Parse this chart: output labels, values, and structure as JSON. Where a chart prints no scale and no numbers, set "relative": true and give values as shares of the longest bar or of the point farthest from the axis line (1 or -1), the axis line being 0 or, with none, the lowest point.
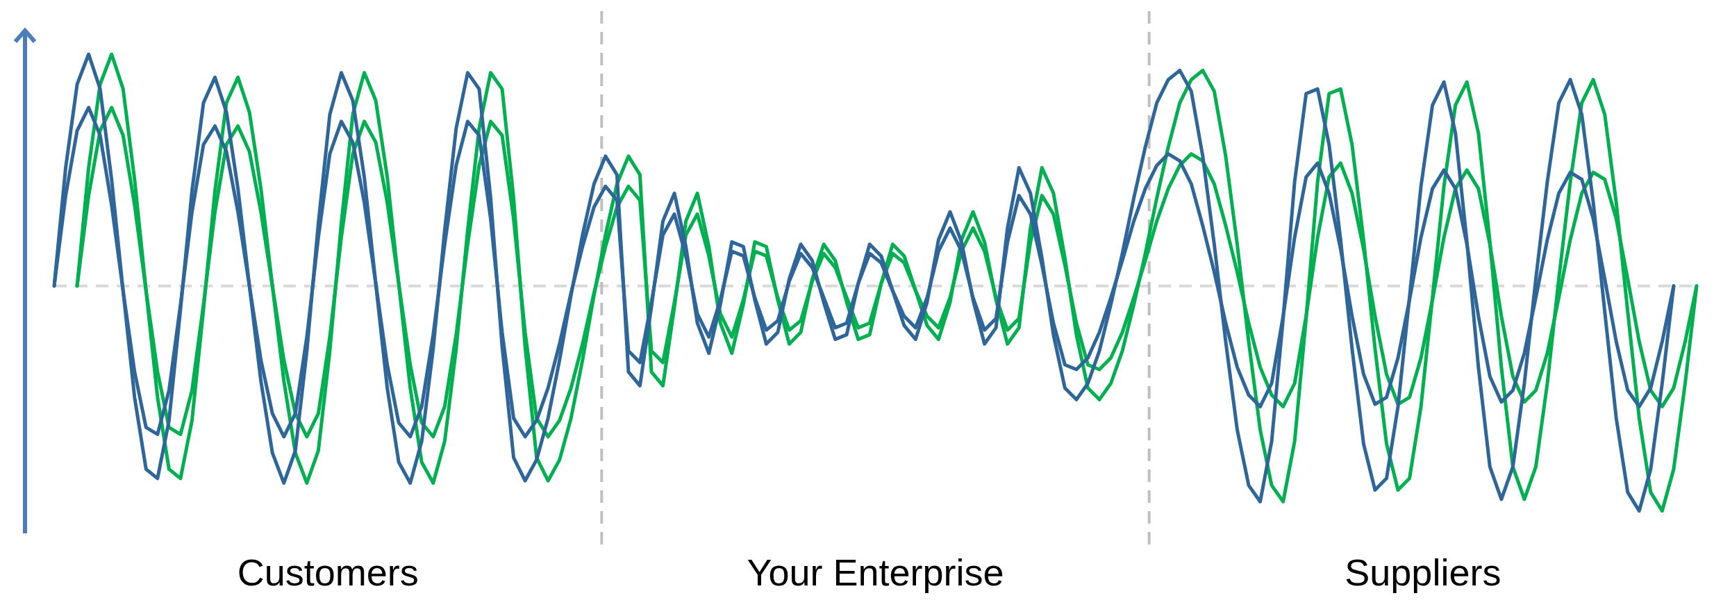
{
  "chart_data": {
    "type": "line",
    "relative": true,
    "grid": false,
    "legend": false,
    "marker": "none",
    "line_style": "solid",
    "categories": [
      null,
      null,
      null,
      null,
      null,
      null,
      null,
      null,
      null,
      null,
      null,
      null,
      null,
      null,
      null,
      null,
      null,
      null,
      null,
      null,
      null,
      null,
      null,
      null,
      null,
      null,
      null,
      null,
      null,
      null,
      null,
      null,
      null,
      null,
      null,
      null,
      null,
      null,
      null,
      null,
      null,
      null,
      null,
      null,
      null,
      null,
      null,
      null,
      null,
      null,
      null,
      null,
      null,
      null,
      null,
      null,
      null,
      null,
      null,
      null,
      null,
      null,
      null,
      null,
      null,
      null,
      null,
      null,
      null,
      null,
      null,
      null,
      null,
      null,
      null,
      null,
      null,
      null,
      null,
      null,
      null,
      null,
      null,
      null,
      null,
      null,
      null,
      null,
      null,
      null,
      null,
      null,
      null,
      null,
      null,
      null,
      null,
      null,
      null,
      null,
      null,
      null,
      null,
      null,
      null,
      null,
      null,
      null,
      null,
      null,
      null,
      null,
      null,
      null,
      null,
      null,
      null,
      null,
      null,
      null,
      null,
      null,
      null,
      null,
      null,
      null,
      null,
      null,
      null,
      null,
      null,
      null,
      null,
      null,
      null,
      null,
      null,
      null,
      null,
      null,
      null,
      null,
      null,
      null
    ],
    "series": [
      {
        "color": "#2e6699",
        "values": [
          0,
          0.51,
          0.87,
          1,
          0.85,
          0.46,
          -0.02,
          -0.48,
          -0.79,
          -0.83,
          -0.58,
          -0.1,
          0.41,
          0.79,
          0.9,
          0.75,
          0.42,
          0,
          -0.41,
          -0.72,
          -0.85,
          -0.71,
          -0.28,
          0.27,
          0.74,
          0.92,
          0.8,
          0.47,
          0.01,
          -0.44,
          -0.76,
          -0.85,
          -0.67,
          -0.27,
          0.24,
          0.68,
          0.92,
          0.85,
          0.38,
          -0.26,
          -0.74,
          -0.84,
          -0.75,
          -0.57,
          -0.32,
          -0.04,
          0.22,
          0.44,
          0.56,
          0.48,
          -0.37,
          -0.43,
          -0.09,
          0.28,
          0.4,
          0.17,
          -0.16,
          -0.29,
          -0.08,
          0.19,
          0.17,
          -0.06,
          -0.25,
          -0.2,
          0.03,
          0.18,
          0.11,
          -0.07,
          -0.23,
          -0.21,
          0.01,
          0.18,
          0.13,
          -0.02,
          -0.17,
          -0.23,
          -0.07,
          0.2,
          0.32,
          0.19,
          -0.06,
          -0.25,
          -0.18,
          0.25,
          0.51,
          0.4,
          0.12,
          -0.21,
          -0.44,
          -0.49,
          -0.42,
          -0.28,
          -0.08,
          0.14,
          0.38,
          0.6,
          0.79,
          0.89,
          0.93,
          0.84,
          0.56,
          0.18,
          -0.24,
          -0.62,
          -0.86,
          -0.93,
          -0.67,
          -0.14,
          0.45,
          0.83,
          0.85,
          0.61,
          0.2,
          -0.27,
          -0.68,
          -0.88,
          -0.83,
          -0.52,
          -0.05,
          0.43,
          0.78,
          0.88,
          0.66,
          0.19,
          -0.35,
          -0.78,
          -0.92,
          -0.78,
          -0.42,
          0.03,
          0.45,
          0.79,
          0.89,
          0.74,
          0.36,
          -0.11,
          -0.57,
          -0.89,
          -0.97,
          -0.79,
          -0.42,
          0,
          null,
          null
        ]
      },
      {
        "color": "#2e6699",
        "values": [
          0,
          0.39,
          0.67,
          0.77,
          0.65,
          0.35,
          -0.02,
          -0.37,
          -0.61,
          -0.64,
          -0.45,
          -0.08,
          0.32,
          0.61,
          0.69,
          0.58,
          0.32,
          0,
          -0.32,
          -0.55,
          -0.65,
          -0.55,
          -0.22,
          0.21,
          0.57,
          0.71,
          0.62,
          0.36,
          0.01,
          -0.34,
          -0.59,
          -0.65,
          -0.52,
          -0.21,
          0.18,
          0.52,
          0.71,
          0.65,
          0.29,
          -0.2,
          -0.57,
          -0.65,
          -0.58,
          -0.44,
          -0.25,
          -0.03,
          0.17,
          0.34,
          0.43,
          0.37,
          -0.28,
          -0.33,
          -0.07,
          0.22,
          0.31,
          0.13,
          -0.12,
          -0.22,
          -0.06,
          0.15,
          0.13,
          -0.05,
          -0.19,
          -0.15,
          0.02,
          0.14,
          0.08,
          -0.05,
          -0.18,
          -0.16,
          0.01,
          0.14,
          0.1,
          -0.02,
          -0.13,
          -0.18,
          -0.05,
          0.15,
          0.25,
          0.15,
          -0.05,
          -0.19,
          -0.14,
          0.19,
          0.39,
          0.31,
          0.09,
          -0.16,
          -0.34,
          -0.36,
          -0.31,
          -0.2,
          -0.05,
          0.11,
          0.28,
          0.42,
          0.52,
          0.57,
          0.54,
          0.44,
          0.26,
          0.06,
          -0.16,
          -0.35,
          -0.47,
          -0.52,
          -0.42,
          -0.13,
          0.21,
          0.47,
          0.53,
          0.4,
          0.16,
          -0.13,
          -0.38,
          -0.51,
          -0.48,
          -0.31,
          -0.06,
          0.21,
          0.42,
          0.5,
          0.42,
          0.18,
          -0.13,
          -0.39,
          -0.5,
          -0.45,
          -0.29,
          -0.05,
          0.2,
          0.4,
          0.49,
          0.46,
          0.29,
          0.03,
          -0.24,
          -0.45,
          -0.52,
          -0.44,
          -0.24,
          0,
          null,
          null
        ]
      },
      {
        "color": "#00b050",
        "values": [
          null,
          null,
          0,
          0.51,
          0.87,
          1,
          0.85,
          0.46,
          -0.02,
          -0.48,
          -0.79,
          -0.83,
          -0.58,
          -0.1,
          0.41,
          0.79,
          0.9,
          0.75,
          0.42,
          0,
          -0.41,
          -0.72,
          -0.85,
          -0.71,
          -0.28,
          0.27,
          0.74,
          0.92,
          0.8,
          0.47,
          0.01,
          -0.44,
          -0.76,
          -0.85,
          -0.67,
          -0.27,
          0.24,
          0.68,
          0.92,
          0.85,
          0.38,
          -0.26,
          -0.74,
          -0.84,
          -0.75,
          -0.57,
          -0.32,
          -0.04,
          0.22,
          0.44,
          0.56,
          0.48,
          -0.37,
          -0.43,
          -0.09,
          0.28,
          0.4,
          0.17,
          -0.16,
          -0.29,
          -0.08,
          0.19,
          0.17,
          -0.06,
          -0.25,
          -0.2,
          0.03,
          0.18,
          0.11,
          -0.07,
          -0.23,
          -0.21,
          0.01,
          0.18,
          0.13,
          -0.02,
          -0.17,
          -0.23,
          -0.07,
          0.2,
          0.32,
          0.19,
          -0.06,
          -0.25,
          -0.18,
          0.25,
          0.51,
          0.4,
          0.12,
          -0.21,
          -0.44,
          -0.49,
          -0.42,
          -0.28,
          -0.08,
          0.14,
          0.38,
          0.6,
          0.79,
          0.89,
          0.93,
          0.84,
          0.56,
          0.18,
          -0.24,
          -0.62,
          -0.86,
          -0.93,
          -0.67,
          -0.14,
          0.45,
          0.83,
          0.85,
          0.61,
          0.2,
          -0.27,
          -0.68,
          -0.88,
          -0.83,
          -0.52,
          -0.05,
          0.43,
          0.78,
          0.88,
          0.66,
          0.19,
          -0.35,
          -0.78,
          -0.92,
          -0.78,
          -0.42,
          0.03,
          0.45,
          0.79,
          0.89,
          0.74,
          0.36,
          -0.11,
          -0.57,
          -0.89,
          -0.97,
          -0.79,
          -0.42,
          0
        ]
      },
      {
        "color": "#00b050",
        "values": [
          null,
          null,
          0,
          0.39,
          0.67,
          0.77,
          0.65,
          0.35,
          -0.02,
          -0.37,
          -0.61,
          -0.64,
          -0.45,
          -0.08,
          0.32,
          0.61,
          0.69,
          0.58,
          0.32,
          0,
          -0.32,
          -0.55,
          -0.65,
          -0.55,
          -0.22,
          0.21,
          0.57,
          0.71,
          0.62,
          0.36,
          0.01,
          -0.34,
          -0.59,
          -0.65,
          -0.52,
          -0.21,
          0.18,
          0.52,
          0.71,
          0.65,
          0.29,
          -0.2,
          -0.57,
          -0.65,
          -0.58,
          -0.44,
          -0.25,
          -0.03,
          0.17,
          0.34,
          0.43,
          0.37,
          -0.28,
          -0.33,
          -0.07,
          0.22,
          0.31,
          0.13,
          -0.12,
          -0.22,
          -0.06,
          0.15,
          0.13,
          -0.05,
          -0.19,
          -0.15,
          0.02,
          0.14,
          0.08,
          -0.05,
          -0.18,
          -0.16,
          0.01,
          0.14,
          0.1,
          -0.02,
          -0.13,
          -0.18,
          -0.05,
          0.15,
          0.25,
          0.15,
          -0.05,
          -0.19,
          -0.14,
          0.19,
          0.39,
          0.31,
          0.09,
          -0.16,
          -0.34,
          -0.36,
          -0.31,
          -0.2,
          -0.05,
          0.11,
          0.28,
          0.42,
          0.52,
          0.57,
          0.54,
          0.44,
          0.26,
          0.06,
          -0.16,
          -0.35,
          -0.47,
          -0.52,
          -0.42,
          -0.13,
          0.21,
          0.47,
          0.53,
          0.4,
          0.16,
          -0.13,
          -0.38,
          -0.51,
          -0.48,
          -0.31,
          -0.06,
          0.21,
          0.42,
          0.5,
          0.42,
          0.18,
          -0.13,
          -0.39,
          -0.5,
          -0.45,
          -0.29,
          -0.05,
          0.2,
          0.4,
          0.49,
          0.46,
          0.29,
          0.03,
          -0.24,
          -0.45,
          -0.52,
          -0.44,
          -0.24,
          0
        ]
      }
    ],
    "ref_lines": [
      {
        "axis": "y",
        "value": 0,
        "color": "#d9d9d9",
        "line_style": "dashed"
      }
    ],
    "annotations": [
      "Customers",
      "Your Enterprise",
      "Suppliers"
    ]
  }
}
